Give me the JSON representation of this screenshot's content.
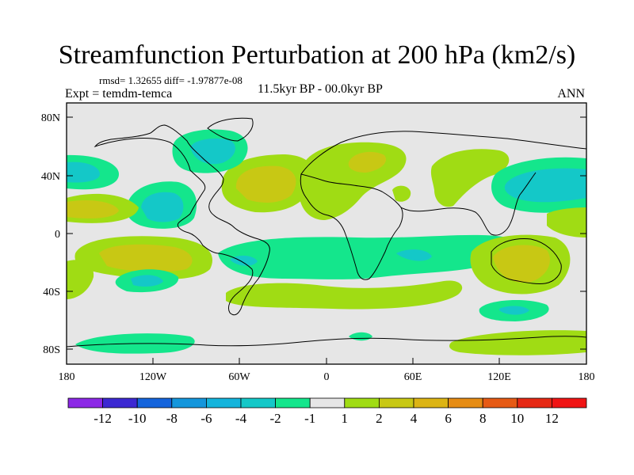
{
  "title": "Streamfunction Perturbation at 200 hPa (km2/s)",
  "stats": "rmsd= 1.32655  diff= -1.97877e-08",
  "left_label": "Expt = temdm-temca",
  "center_label": "11.5kyr BP - 00.0kyr BP",
  "right_label": "ANN",
  "colors": {
    "ocean_bg": "#e6e6e6",
    "green": "#a0dc14",
    "yellow": "#c8c814",
    "teal": "#14e68c",
    "cyan": "#14c8c8",
    "blue": "#1496dc"
  },
  "chart_data": {
    "type": "contour-map",
    "projection": "cylindrical equidistant",
    "field": "Streamfunction perturbation, 200 hPa",
    "units": "km2/s",
    "lon_range": [
      -180,
      180
    ],
    "lat_range": [
      -90,
      90
    ],
    "x_ticks": [
      "180",
      "120W",
      "60W",
      "0",
      "60E",
      "120E",
      "180"
    ],
    "y_ticks": [
      "80N",
      "40N",
      "0",
      "40S",
      "80S"
    ],
    "colorbar": {
      "labels": [
        "-12",
        "-10",
        "-8",
        "-6",
        "-4",
        "-2",
        "-1",
        "1",
        "2",
        "4",
        "6",
        "8",
        "10",
        "12"
      ],
      "colors": [
        "#8c28e6",
        "#3c28d2",
        "#1464dc",
        "#1496dc",
        "#14b4dc",
        "#14c8c8",
        "#14e68c",
        "#e6e6e6",
        "#a0dc14",
        "#c8c814",
        "#dcb414",
        "#e68c14",
        "#e65a14",
        "#e62814",
        "#f01414"
      ]
    }
  }
}
